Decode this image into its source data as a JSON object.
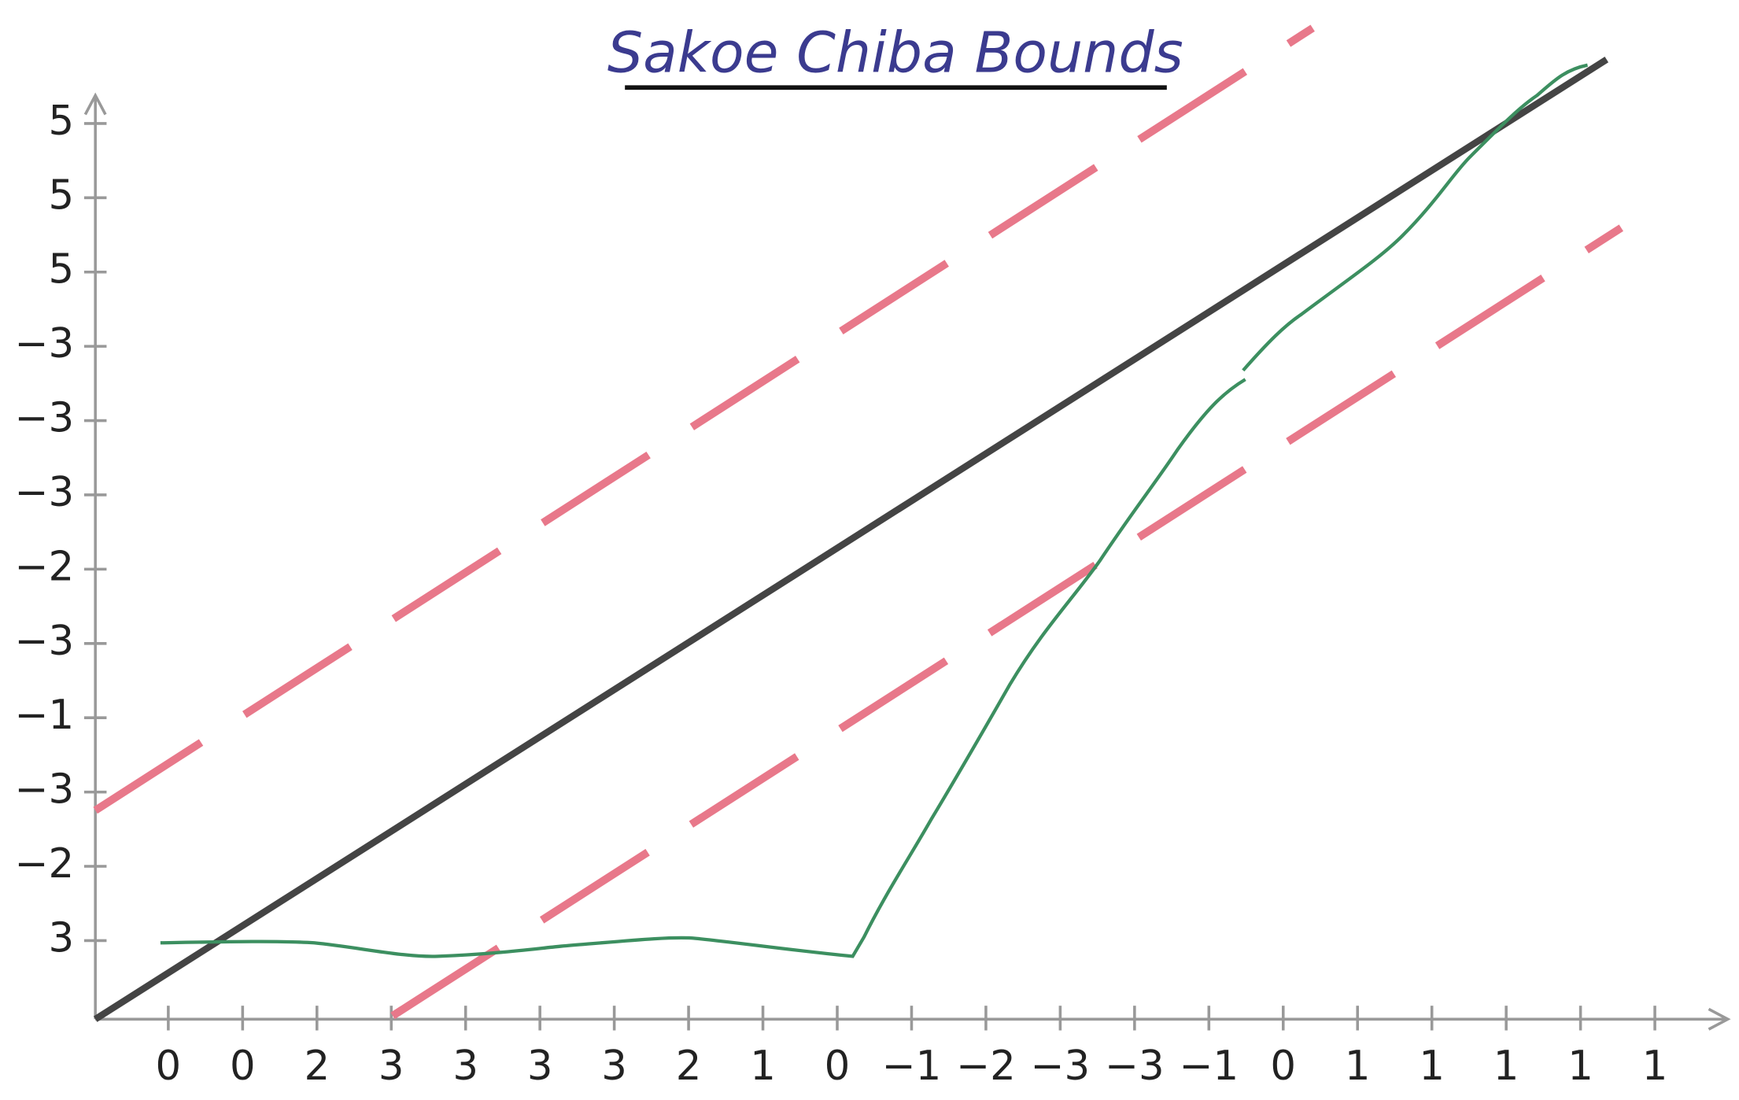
{
  "title": "Sakoe Chiba Bounds",
  "y_sequence": [
    "5",
    "5",
    "5",
    "−3",
    "−3",
    "−3",
    "−2",
    "−3",
    "−1",
    "−3",
    "−2",
    "3"
  ],
  "x_sequence": [
    "0",
    "0",
    "2",
    "3",
    "3",
    "3",
    "3",
    "2",
    "1",
    "0",
    "−1",
    "−2",
    "−3",
    "−3",
    "−1",
    "0",
    "1",
    "1",
    "1",
    "1",
    "1"
  ]
}
